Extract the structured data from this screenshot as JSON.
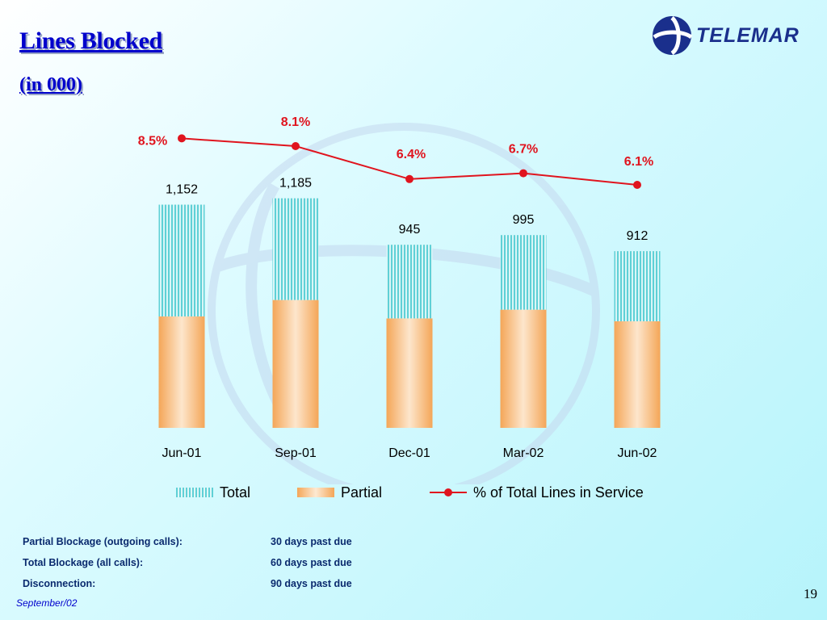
{
  "slide": {
    "title": "Lines Blocked",
    "subtitle": "(in 000)",
    "footer_date": "September/02",
    "page_number": "19"
  },
  "logo": {
    "text": "TELEMAR",
    "colors": {
      "globe": "#1a2f8c",
      "text": "#1a2f8c"
    }
  },
  "chart_data": {
    "type": "bar",
    "stacked": true,
    "categories": [
      "Jun-01",
      "Sep-01",
      "Dec-01",
      "Mar-02",
      "Jun-02"
    ],
    "total_labels": [
      "1,152",
      "1,185",
      "945",
      "995",
      "912"
    ],
    "totals": [
      1152,
      1185,
      945,
      995,
      912
    ],
    "series": [
      {
        "name": "Partial",
        "color": "#f4a658",
        "values": [
          575,
          660,
          565,
          610,
          550
        ]
      },
      {
        "name": "Total",
        "color": "#5fd0d6",
        "values": [
          577,
          525,
          380,
          385,
          362
        ]
      }
    ],
    "line_series": {
      "name": "% of Total Lines in Service",
      "color": "#e0141e",
      "values": [
        8.5,
        8.1,
        6.4,
        6.7,
        6.1
      ],
      "labels": [
        "8.5%",
        "8.1%",
        "6.4%",
        "6.7%",
        "6.1%"
      ]
    },
    "legend": [
      "Total",
      "Partial",
      "% of Total Lines in Service"
    ],
    "legend_position": "bottom",
    "grid": false
  },
  "notes": [
    {
      "label": "Partial Blockage (outgoing calls):",
      "value": "30 days past due"
    },
    {
      "label": "Total Blockage (all calls):",
      "value": "60 days past due"
    },
    {
      "label": "Disconnection:",
      "value": "90 days past due"
    }
  ]
}
